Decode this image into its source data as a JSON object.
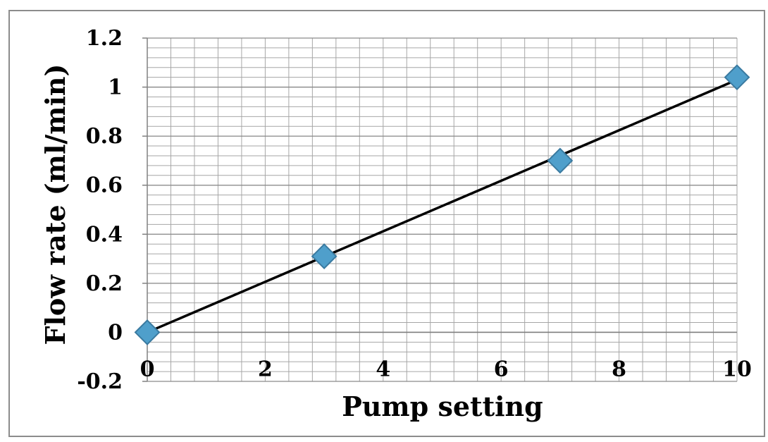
{
  "chart_data": {
    "type": "scatter",
    "title": "",
    "xlabel": "Pump setting",
    "ylabel": "Flow rate (ml/min)",
    "xlim": [
      0,
      10
    ],
    "ylim": [
      -0.2,
      1.2
    ],
    "xticks": [
      0,
      2,
      4,
      6,
      8,
      10
    ],
    "xtick_labels": [
      "0",
      "2",
      "4",
      "6",
      "8",
      "10"
    ],
    "yticks": [
      -0.2,
      0,
      0.2,
      0.4,
      0.6,
      0.8,
      1,
      1.2
    ],
    "ytick_labels": [
      "-0.2",
      "0",
      "0.2",
      "0.4",
      "0.6",
      "0.8",
      "1",
      "1.2"
    ],
    "x_minor_step": 0.4,
    "y_minor_step": 0.04,
    "grid": true,
    "legend": "none",
    "series": [
      {
        "marker": "diamond",
        "color": "#4f9fcb",
        "x": [
          0,
          3,
          7,
          10
        ],
        "y": [
          0,
          0.31,
          0.7,
          1.04
        ]
      }
    ],
    "trendline": {
      "type": "linear",
      "color": "#000000",
      "x": [
        0,
        10
      ],
      "y": [
        0,
        1.03
      ]
    }
  },
  "colors": {
    "grid": "#a6a6a6",
    "frame": "#8c8c8c",
    "marker_fill": "#4f9fcb",
    "marker_stroke": "#3a7aa0"
  }
}
